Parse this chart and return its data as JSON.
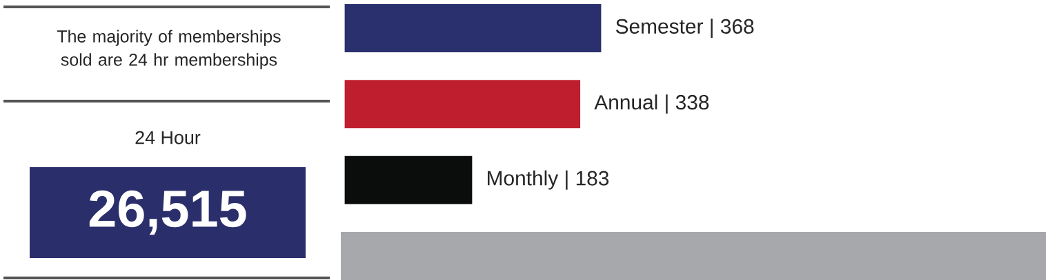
{
  "chart_data": [
    {
      "type": "other",
      "annotations": [
        "The majority of memberships sold are 24 hr memberships",
        "24 Hour",
        "26,515"
      ],
      "color": "#2a2f6b"
    },
    {
      "type": "bar",
      "orientation": "horizontal",
      "categories": [
        null,
        null,
        null
      ],
      "values": [
        368,
        338,
        183
      ],
      "value_labels": [
        "Semester | 368",
        "Annual | 338",
        "Monthly | 183"
      ],
      "colors": [
        "#2a2f6d",
        "#be1e2d",
        "#0b0c0c"
      ]
    }
  ]
}
